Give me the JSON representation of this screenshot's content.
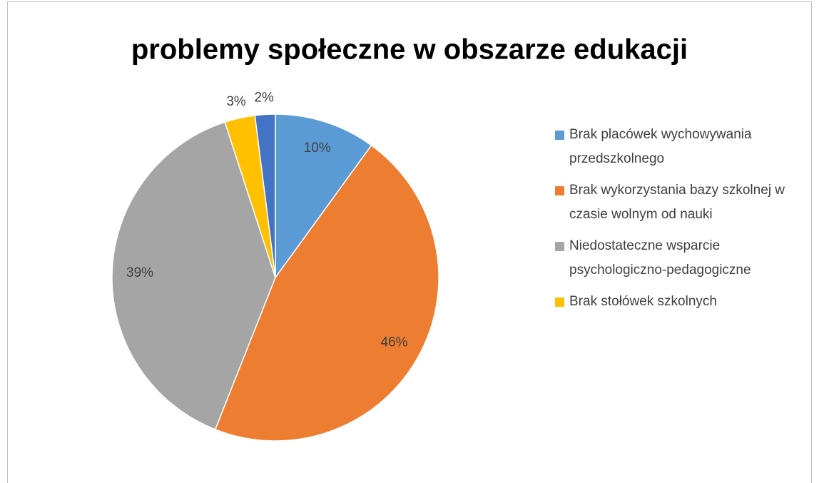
{
  "chart_data": {
    "type": "pie",
    "title": "problemy społeczne w obszarze edukacji",
    "categories": [
      "Brak placówek wychowywania przedszkolnego",
      "Brak wykorzystania bazy szkolnej w czasie wolnym od nauki",
      "Niedostateczne wsparcie psychologiczno-pedagogiczne",
      "Brak stołówek szkolnych",
      null
    ],
    "values": [
      10,
      46,
      39,
      3,
      2
    ],
    "value_labels": [
      "10%",
      "46%",
      "39%",
      "3%",
      "2%"
    ],
    "colors": [
      "#5b9bd5",
      "#ed7d31",
      "#a5a5a5",
      "#ffc000",
      "#4472c4"
    ],
    "legend": "right"
  }
}
